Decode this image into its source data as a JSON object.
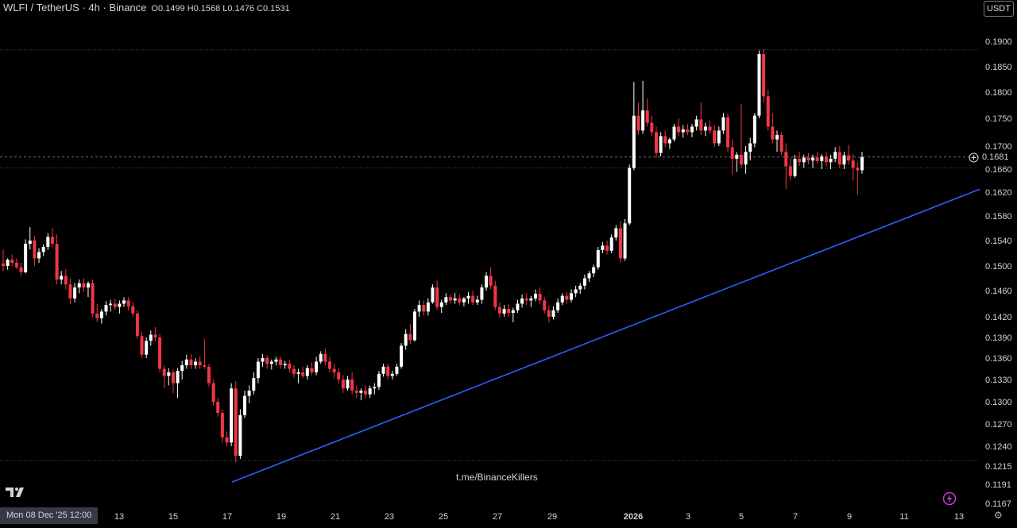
{
  "header": {
    "symbol": "WLFI / TetherUS · 4h · Binance",
    "ohlc": "O0.1499 H0.1568 L0.1476 C0.1531"
  },
  "currency_button": "USDT",
  "watermark": "t.me/BinanceKillers",
  "crosshair_time_label": "Mon 08 Dec '25   12:00",
  "current_price_label": "0.1681",
  "colors": {
    "up": "#ffffff",
    "down": "#f23645",
    "trendline": "#2962ff",
    "background": "#000000"
  },
  "icons": [
    "tradingview-logo-icon",
    "lightning-icon",
    "settings-icon",
    "add-alert-icon"
  ],
  "chart_data": {
    "type": "candlestick",
    "interval": "4h",
    "start": "Mon 08 Dec '25 12:00",
    "y_ticks": [
      "0.1900",
      "0.1850",
      "0.1800",
      "0.1750",
      "0.1700",
      "0.1660",
      "0.1620",
      "0.1580",
      "0.1540",
      "0.1500",
      "0.1460",
      "0.1420",
      "0.1390",
      "0.1360",
      "0.1330",
      "0.1300",
      "0.1270",
      "0.1240",
      "0.1215",
      "0.1191",
      "0.1167"
    ],
    "x_ticks": [
      "13",
      "15",
      "17",
      "19",
      "21",
      "23",
      "25",
      "27",
      "29",
      "2026",
      "3",
      "5",
      "7",
      "9",
      "11",
      "13"
    ],
    "ylim": [
      0.1167,
      0.193
    ],
    "horizontal_lines": [
      0.1883,
      0.1681,
      0.1662,
      0.1222
    ],
    "trendline": {
      "from": [
        0.1194,
        0.1194
      ],
      "to": [
        0.1625,
        0.1625
      ]
    },
    "candles": [
      [
        0.1504,
        0.1526,
        0.1492,
        0.15
      ],
      [
        0.15,
        0.1512,
        0.1494,
        0.151
      ],
      [
        0.151,
        0.1518,
        0.15,
        0.1505
      ],
      [
        0.1505,
        0.1512,
        0.1495,
        0.1498
      ],
      [
        0.1498,
        0.1505,
        0.1484,
        0.149
      ],
      [
        0.149,
        0.1542,
        0.1488,
        0.1535
      ],
      [
        0.1535,
        0.1562,
        0.1526,
        0.154
      ],
      [
        0.154,
        0.1548,
        0.15,
        0.1512
      ],
      [
        0.1512,
        0.1528,
        0.1505,
        0.1522
      ],
      [
        0.1522,
        0.1534,
        0.1516,
        0.153
      ],
      [
        0.153,
        0.1552,
        0.1525,
        0.1546
      ],
      [
        0.1546,
        0.156,
        0.153,
        0.1535
      ],
      [
        0.1535,
        0.155,
        0.147,
        0.1478
      ],
      [
        0.1478,
        0.1492,
        0.147,
        0.1484
      ],
      [
        0.1484,
        0.1495,
        0.1462,
        0.147
      ],
      [
        0.147,
        0.148,
        0.144,
        0.1448
      ],
      [
        0.1448,
        0.1472,
        0.1442,
        0.1465
      ],
      [
        0.1465,
        0.1478,
        0.1456,
        0.1472
      ],
      [
        0.1472,
        0.148,
        0.1458,
        0.1465
      ],
      [
        0.1465,
        0.1475,
        0.145,
        0.1472
      ],
      [
        0.1472,
        0.1478,
        0.142,
        0.1425
      ],
      [
        0.1425,
        0.144,
        0.1412,
        0.1418
      ],
      [
        0.1418,
        0.1432,
        0.141,
        0.1428
      ],
      [
        0.1428,
        0.1444,
        0.1422,
        0.1438
      ],
      [
        0.1438,
        0.1446,
        0.1428,
        0.144
      ],
      [
        0.144,
        0.1448,
        0.143,
        0.1435
      ],
      [
        0.1435,
        0.1445,
        0.1425,
        0.144
      ],
      [
        0.144,
        0.145,
        0.1435,
        0.1445
      ],
      [
        0.1445,
        0.145,
        0.143,
        0.1436
      ],
      [
        0.1436,
        0.1442,
        0.142,
        0.1425
      ],
      [
        0.1425,
        0.143,
        0.1388,
        0.1392
      ],
      [
        0.1392,
        0.1398,
        0.136,
        0.1365
      ],
      [
        0.1365,
        0.139,
        0.136,
        0.1385
      ],
      [
        0.1385,
        0.14,
        0.1378,
        0.1394
      ],
      [
        0.1394,
        0.1405,
        0.1385,
        0.139
      ],
      [
        0.139,
        0.1395,
        0.134,
        0.1345
      ],
      [
        0.1345,
        0.135,
        0.1318,
        0.1335
      ],
      [
        0.1335,
        0.1346,
        0.1322,
        0.134
      ],
      [
        0.134,
        0.1344,
        0.1312,
        0.1325
      ],
      [
        0.1325,
        0.1346,
        0.1305,
        0.1342
      ],
      [
        0.1342,
        0.1356,
        0.133,
        0.135
      ],
      [
        0.135,
        0.1365,
        0.1345,
        0.1358
      ],
      [
        0.1358,
        0.1366,
        0.1345,
        0.135
      ],
      [
        0.135,
        0.136,
        0.1345,
        0.1355
      ],
      [
        0.1355,
        0.1362,
        0.1345,
        0.135
      ],
      [
        0.135,
        0.1388,
        0.1345,
        0.1348
      ],
      [
        0.1348,
        0.1352,
        0.132,
        0.1325
      ],
      [
        0.1325,
        0.133,
        0.1295,
        0.13
      ],
      [
        0.13,
        0.1305,
        0.128,
        0.1285
      ],
      [
        0.1285,
        0.129,
        0.1245,
        0.1252
      ],
      [
        0.1252,
        0.126,
        0.124,
        0.1245
      ],
      [
        0.1245,
        0.1325,
        0.124,
        0.1318
      ],
      [
        0.1318,
        0.1328,
        0.122,
        0.1228
      ],
      [
        0.1228,
        0.129,
        0.1224,
        0.1282
      ],
      [
        0.1282,
        0.1315,
        0.1278,
        0.1308
      ],
      [
        0.1308,
        0.1322,
        0.1298,
        0.1315
      ],
      [
        0.1315,
        0.134,
        0.131,
        0.1332
      ],
      [
        0.1332,
        0.136,
        0.1325,
        0.1355
      ],
      [
        0.1355,
        0.1366,
        0.1348,
        0.136
      ],
      [
        0.136,
        0.1364,
        0.1345,
        0.1352
      ],
      [
        0.1352,
        0.1358,
        0.1344,
        0.1355
      ],
      [
        0.1355,
        0.1362,
        0.135,
        0.1358
      ],
      [
        0.1358,
        0.1362,
        0.1345,
        0.135
      ],
      [
        0.135,
        0.1356,
        0.1345,
        0.1352
      ],
      [
        0.1352,
        0.1358,
        0.134,
        0.1345
      ],
      [
        0.1345,
        0.135,
        0.1332,
        0.1338
      ],
      [
        0.1338,
        0.1345,
        0.1325,
        0.134
      ],
      [
        0.134,
        0.1348,
        0.1332,
        0.1335
      ],
      [
        0.1335,
        0.135,
        0.133,
        0.1346
      ],
      [
        0.1346,
        0.1354,
        0.1336,
        0.134
      ],
      [
        0.134,
        0.1362,
        0.1336,
        0.1355
      ],
      [
        0.1355,
        0.137,
        0.1352,
        0.1366
      ],
      [
        0.1366,
        0.1374,
        0.135,
        0.1355
      ],
      [
        0.1355,
        0.1362,
        0.134,
        0.1345
      ],
      [
        0.1345,
        0.1352,
        0.1332,
        0.134
      ],
      [
        0.134,
        0.1346,
        0.1325,
        0.133
      ],
      [
        0.133,
        0.1336,
        0.1312,
        0.1318
      ],
      [
        0.1318,
        0.1335,
        0.1315,
        0.133
      ],
      [
        0.133,
        0.134,
        0.131,
        0.1315
      ],
      [
        0.1315,
        0.1322,
        0.1305,
        0.1312
      ],
      [
        0.1312,
        0.1318,
        0.1302,
        0.1315
      ],
      [
        0.1315,
        0.1322,
        0.1305,
        0.131
      ],
      [
        0.131,
        0.1322,
        0.1305,
        0.1318
      ],
      [
        0.1318,
        0.1325,
        0.131,
        0.132
      ],
      [
        0.132,
        0.1342,
        0.1316,
        0.1338
      ],
      [
        0.1338,
        0.1352,
        0.1334,
        0.1348
      ],
      [
        0.1348,
        0.1352,
        0.133,
        0.1335
      ],
      [
        0.1335,
        0.1342,
        0.133,
        0.1338
      ],
      [
        0.1338,
        0.1352,
        0.1335,
        0.1348
      ],
      [
        0.1348,
        0.1382,
        0.1345,
        0.1378
      ],
      [
        0.1378,
        0.1402,
        0.1372,
        0.1395
      ],
      [
        0.1395,
        0.141,
        0.138,
        0.1386
      ],
      [
        0.1386,
        0.1432,
        0.1384,
        0.1428
      ],
      [
        0.1428,
        0.1445,
        0.142,
        0.1438
      ],
      [
        0.1438,
        0.1445,
        0.1422,
        0.1428
      ],
      [
        0.1428,
        0.1448,
        0.1422,
        0.1442
      ],
      [
        0.1442,
        0.147,
        0.144,
        0.1465
      ],
      [
        0.1465,
        0.1476,
        0.143,
        0.1435
      ],
      [
        0.1435,
        0.1446,
        0.1426,
        0.1442
      ],
      [
        0.1442,
        0.1456,
        0.1438,
        0.145
      ],
      [
        0.145,
        0.1454,
        0.144,
        0.1445
      ],
      [
        0.1445,
        0.1456,
        0.144,
        0.1448
      ],
      [
        0.1448,
        0.1455,
        0.1438,
        0.1442
      ],
      [
        0.1442,
        0.145,
        0.1436,
        0.1448
      ],
      [
        0.1448,
        0.1458,
        0.144,
        0.1452
      ],
      [
        0.1452,
        0.146,
        0.1438,
        0.1442
      ],
      [
        0.1442,
        0.1452,
        0.1438,
        0.1446
      ],
      [
        0.1446,
        0.147,
        0.144,
        0.1465
      ],
      [
        0.1465,
        0.149,
        0.146,
        0.1484
      ],
      [
        0.1484,
        0.1498,
        0.1462,
        0.1468
      ],
      [
        0.1468,
        0.1476,
        0.143,
        0.1435
      ],
      [
        0.1435,
        0.1442,
        0.1418,
        0.1425
      ],
      [
        0.1425,
        0.1438,
        0.142,
        0.1432
      ],
      [
        0.1432,
        0.144,
        0.142,
        0.1426
      ],
      [
        0.1426,
        0.1434,
        0.1412,
        0.143
      ],
      [
        0.143,
        0.1446,
        0.1426,
        0.144
      ],
      [
        0.144,
        0.1454,
        0.1434,
        0.1448
      ],
      [
        0.1448,
        0.1456,
        0.1438,
        0.1445
      ],
      [
        0.1445,
        0.1452,
        0.1435,
        0.1448
      ],
      [
        0.1448,
        0.1462,
        0.1444,
        0.1455
      ],
      [
        0.1455,
        0.1465,
        0.144,
        0.1445
      ],
      [
        0.1445,
        0.145,
        0.1425,
        0.143
      ],
      [
        0.143,
        0.1438,
        0.1412,
        0.142
      ],
      [
        0.142,
        0.1436,
        0.1416,
        0.143
      ],
      [
        0.143,
        0.1448,
        0.1426,
        0.1442
      ],
      [
        0.1442,
        0.1456,
        0.1438,
        0.1452
      ],
      [
        0.1452,
        0.1458,
        0.144,
        0.1446
      ],
      [
        0.1446,
        0.1462,
        0.1442,
        0.1456
      ],
      [
        0.1456,
        0.1468,
        0.145,
        0.1462
      ],
      [
        0.1462,
        0.1472,
        0.1455,
        0.1468
      ],
      [
        0.1468,
        0.1486,
        0.1462,
        0.148
      ],
      [
        0.148,
        0.1492,
        0.1474,
        0.1488
      ],
      [
        0.1488,
        0.1502,
        0.1482,
        0.1498
      ],
      [
        0.1498,
        0.153,
        0.1494,
        0.1525
      ],
      [
        0.1525,
        0.1538,
        0.152,
        0.1532
      ],
      [
        0.1532,
        0.154,
        0.1518,
        0.1524
      ],
      [
        0.1524,
        0.155,
        0.152,
        0.1545
      ],
      [
        0.1545,
        0.1565,
        0.154,
        0.156
      ],
      [
        0.156,
        0.1572,
        0.1505,
        0.1512
      ],
      [
        0.1512,
        0.1575,
        0.1508,
        0.1568
      ],
      [
        0.1568,
        0.1668,
        0.1565,
        0.1662
      ],
      [
        0.1662,
        0.182,
        0.1658,
        0.1755
      ],
      [
        0.1755,
        0.178,
        0.172,
        0.1728
      ],
      [
        0.1728,
        0.1822,
        0.1722,
        0.1765
      ],
      [
        0.1765,
        0.1788,
        0.1735,
        0.1742
      ],
      [
        0.1742,
        0.1755,
        0.1718,
        0.1725
      ],
      [
        0.1725,
        0.1735,
        0.168,
        0.1688
      ],
      [
        0.1688,
        0.1725,
        0.1682,
        0.1718
      ],
      [
        0.1718,
        0.1728,
        0.1698,
        0.1705
      ],
      [
        0.1705,
        0.1715,
        0.1695,
        0.1712
      ],
      [
        0.1712,
        0.174,
        0.1708,
        0.1735
      ],
      [
        0.1735,
        0.175,
        0.1718,
        0.1725
      ],
      [
        0.1725,
        0.1738,
        0.1715,
        0.173
      ],
      [
        0.173,
        0.174,
        0.172,
        0.1725
      ],
      [
        0.1725,
        0.174,
        0.1716,
        0.1735
      ],
      [
        0.1735,
        0.1755,
        0.1728,
        0.1748
      ],
      [
        0.1748,
        0.178,
        0.172,
        0.1728
      ],
      [
        0.1728,
        0.1742,
        0.1718,
        0.1735
      ],
      [
        0.1735,
        0.1745,
        0.1722,
        0.1728
      ],
      [
        0.1728,
        0.1738,
        0.1698,
        0.1705
      ],
      [
        0.1705,
        0.1735,
        0.17,
        0.1728
      ],
      [
        0.1728,
        0.176,
        0.1722,
        0.1752
      ],
      [
        0.1752,
        0.1758,
        0.169,
        0.1698
      ],
      [
        0.1698,
        0.1712,
        0.165,
        0.1678
      ],
      [
        0.1678,
        0.169,
        0.1655,
        0.1685
      ],
      [
        0.1685,
        0.1778,
        0.1662,
        0.1668
      ],
      [
        0.1668,
        0.17,
        0.1652,
        0.169
      ],
      [
        0.169,
        0.1715,
        0.1675,
        0.1705
      ],
      [
        0.1705,
        0.176,
        0.1698,
        0.1755
      ],
      [
        0.1755,
        0.1882,
        0.175,
        0.1875
      ],
      [
        0.1875,
        0.1885,
        0.178,
        0.1792
      ],
      [
        0.1792,
        0.1805,
        0.1728,
        0.1735
      ],
      [
        0.1735,
        0.176,
        0.1705,
        0.1712
      ],
      [
        0.1712,
        0.1728,
        0.169,
        0.172
      ],
      [
        0.172,
        0.1725,
        0.1685,
        0.169
      ],
      [
        0.169,
        0.1705,
        0.1625,
        0.1665
      ],
      [
        0.1665,
        0.168,
        0.164,
        0.1648
      ],
      [
        0.1648,
        0.1685,
        0.1645,
        0.1678
      ],
      [
        0.1678,
        0.169,
        0.1665,
        0.1672
      ],
      [
        0.1672,
        0.1685,
        0.1662,
        0.168
      ],
      [
        0.168,
        0.1688,
        0.1668,
        0.1675
      ],
      [
        0.1675,
        0.1685,
        0.1662,
        0.168
      ],
      [
        0.168,
        0.169,
        0.167,
        0.1674
      ],
      [
        0.1674,
        0.1686,
        0.166,
        0.1682
      ],
      [
        0.1682,
        0.169,
        0.1665,
        0.1672
      ],
      [
        0.1672,
        0.1685,
        0.166,
        0.1678
      ],
      [
        0.1678,
        0.1698,
        0.1672,
        0.169
      ],
      [
        0.169,
        0.17,
        0.1662,
        0.1668
      ],
      [
        0.1668,
        0.169,
        0.166,
        0.1684
      ],
      [
        0.1684,
        0.1702,
        0.1668,
        0.1675
      ],
      [
        0.1675,
        0.1686,
        0.164,
        0.1662
      ],
      [
        0.1662,
        0.1672,
        0.1615,
        0.1658
      ],
      [
        0.1658,
        0.169,
        0.1652,
        0.1681
      ]
    ]
  }
}
